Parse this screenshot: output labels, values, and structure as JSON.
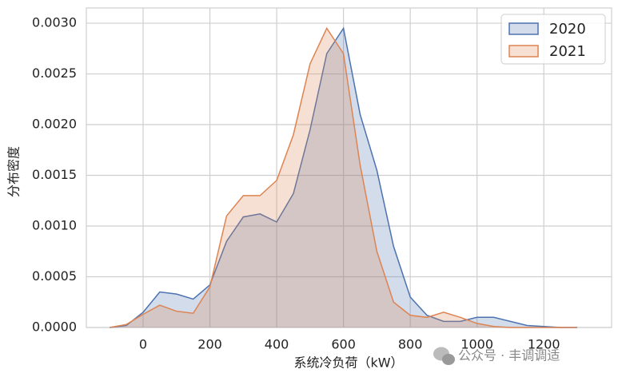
{
  "chart_data": {
    "type": "area",
    "x_label": "系统冷负荷（kW）",
    "y_label": "分布密度",
    "x": [
      -100,
      -50,
      0,
      50,
      100,
      150,
      200,
      250,
      300,
      350,
      400,
      450,
      500,
      550,
      600,
      650,
      700,
      750,
      800,
      850,
      900,
      950,
      1000,
      1050,
      1100,
      1150,
      1200,
      1250,
      1300
    ],
    "series": [
      {
        "name": "2020",
        "color": "#4c72b0",
        "values": [
          0,
          2e-05,
          0.00015,
          0.00035,
          0.00033,
          0.00028,
          0.00042,
          0.00085,
          0.00109,
          0.00112,
          0.00104,
          0.00132,
          0.00195,
          0.0027,
          0.00295,
          0.0021,
          0.00155,
          0.0008,
          0.0003,
          0.00012,
          6e-05,
          6e-05,
          0.0001,
          0.0001,
          6e-05,
          2e-05,
          1e-05,
          0,
          0
        ]
      },
      {
        "name": "2021",
        "color": "#dd8452",
        "values": [
          0,
          3e-05,
          0.00013,
          0.00022,
          0.00016,
          0.00014,
          0.0004,
          0.0011,
          0.0013,
          0.0013,
          0.00145,
          0.0019,
          0.0026,
          0.00295,
          0.0027,
          0.0016,
          0.00075,
          0.00025,
          0.00012,
          0.0001,
          0.00015,
          0.0001,
          4e-05,
          1e-05,
          0,
          0,
          0,
          0,
          0
        ]
      }
    ],
    "xlim": [
      -170,
      1403
    ],
    "ylim": [
      0,
      0.00315
    ],
    "xticks": [
      0,
      200,
      400,
      600,
      800,
      1000,
      1200
    ],
    "yticks": [
      {
        "value": 0,
        "label": "0.0000"
      },
      {
        "value": 0.0005,
        "label": "0.0005"
      },
      {
        "value": 0.001,
        "label": "0.0010"
      },
      {
        "value": 0.0015,
        "label": "0.0015"
      },
      {
        "value": 0.002,
        "label": "0.0020"
      },
      {
        "value": 0.0025,
        "label": "0.0025"
      },
      {
        "value": 0.003,
        "label": "0.0030"
      }
    ],
    "grid": true,
    "legend": "upper right"
  },
  "watermark": "公众号 · 丰调调适"
}
